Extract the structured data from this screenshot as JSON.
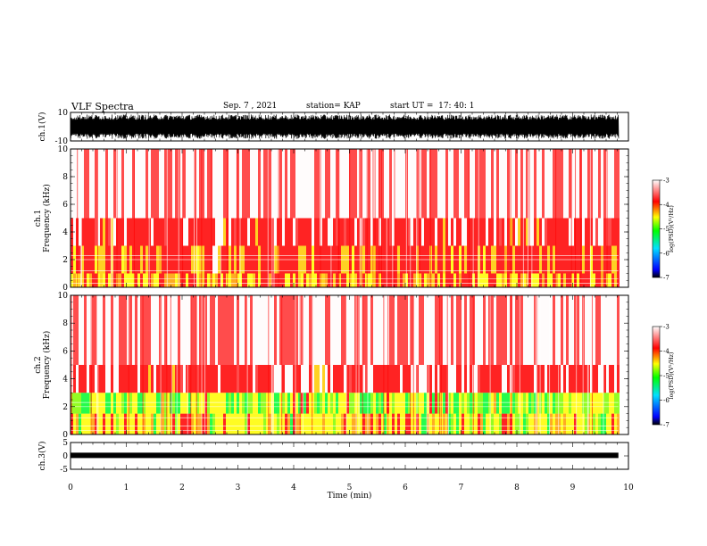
{
  "header": {
    "title": "VLF Spectra",
    "date": "Sep. 7 , 2021",
    "station": "station= KAP",
    "start": "start UT =  17: 40: 1"
  },
  "colors": {
    "colorbar": [
      "#000000",
      "#0000ff",
      "#00e0ff",
      "#00ff00",
      "#ffff00",
      "#ff0000",
      "#ffffff"
    ]
  },
  "chart_data": [
    {
      "type": "line",
      "name": "ch1-waveform",
      "ylabel": "ch.1(V)",
      "ylim": [
        -10,
        10
      ],
      "yticks": [
        "10",
        "-10"
      ],
      "x_range_min": [
        0,
        9.8
      ],
      "description_values": "dense oscillating signal saturating between about -8 and +8 V"
    },
    {
      "type": "heatmap",
      "name": "ch1-spectrogram",
      "ylabel": "ch.1\nFrequency (kHz)",
      "ylim": [
        0,
        10
      ],
      "yticks": [
        "0",
        "2",
        "4",
        "6",
        "8",
        "10"
      ],
      "colorbar": {
        "label": "log(PSD)(V²/Hz)",
        "range": [
          -7,
          -3
        ],
        "ticks": [
          "-3",
          "-4",
          "-5",
          "-6",
          "-7"
        ]
      },
      "bands": [
        {
          "freq_khz": [
            0,
            1
          ],
          "level": -4.6
        },
        {
          "freq_khz": [
            1,
            3
          ],
          "level": -4.3
        },
        {
          "freq_khz": [
            3,
            5
          ],
          "level": -3.9
        },
        {
          "freq_khz": [
            5,
            10
          ],
          "level": -3.4
        }
      ]
    },
    {
      "type": "heatmap",
      "name": "ch2-spectrogram",
      "ylabel": "ch.2\nFrequency (kHz)",
      "ylim": [
        0,
        10
      ],
      "yticks": [
        "0",
        "2",
        "4",
        "6",
        "8",
        "10"
      ],
      "colorbar": {
        "label": "log(PSD)(V²/Hz)",
        "range": [
          -7,
          -3
        ],
        "ticks": [
          "-3",
          "-4",
          "-5",
          "-6",
          "-7"
        ]
      },
      "bands": [
        {
          "freq_khz": [
            0,
            1.5
          ],
          "level": -4.8
        },
        {
          "freq_khz": [
            1.5,
            3
          ],
          "level": -5.1
        },
        {
          "freq_khz": [
            3,
            5
          ],
          "level": -3.9
        },
        {
          "freq_khz": [
            5,
            10
          ],
          "level": -3.4
        }
      ]
    },
    {
      "type": "line",
      "name": "ch3-waveform",
      "ylabel": "ch.3(V)",
      "ylim": [
        -5,
        5
      ],
      "yticks": [
        "5",
        "0",
        "-5"
      ],
      "level_v": 0.2
    }
  ],
  "xaxis": {
    "label": "Time (min)",
    "range": [
      0,
      10
    ],
    "ticks": [
      "0",
      "1",
      "2",
      "3",
      "4",
      "5",
      "6",
      "7",
      "8",
      "9",
      "10"
    ],
    "data_end_min": 9.82
  }
}
